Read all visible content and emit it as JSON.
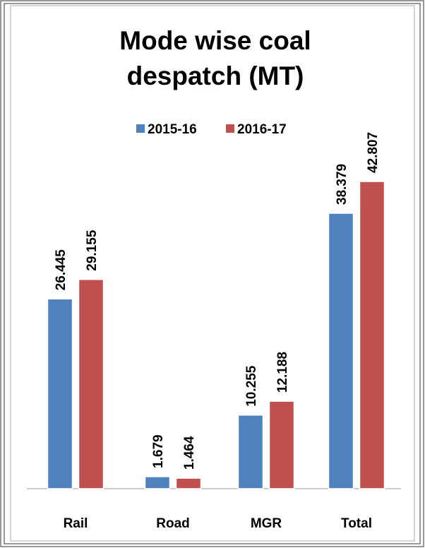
{
  "chart_data": {
    "type": "bar",
    "title": [
      "Mode wise coal",
      "despatch (MT)"
    ],
    "categories": [
      "Rail",
      "Road",
      "MGR",
      "Total"
    ],
    "series": [
      {
        "name": "2015-16",
        "color": "#4f81bd",
        "values": [
          26.445,
          1.679,
          10.255,
          38.379
        ]
      },
      {
        "name": "2016-17",
        "color": "#c0504d",
        "values": [
          29.155,
          1.464,
          12.188,
          42.807
        ]
      }
    ],
    "legend": "top"
  }
}
